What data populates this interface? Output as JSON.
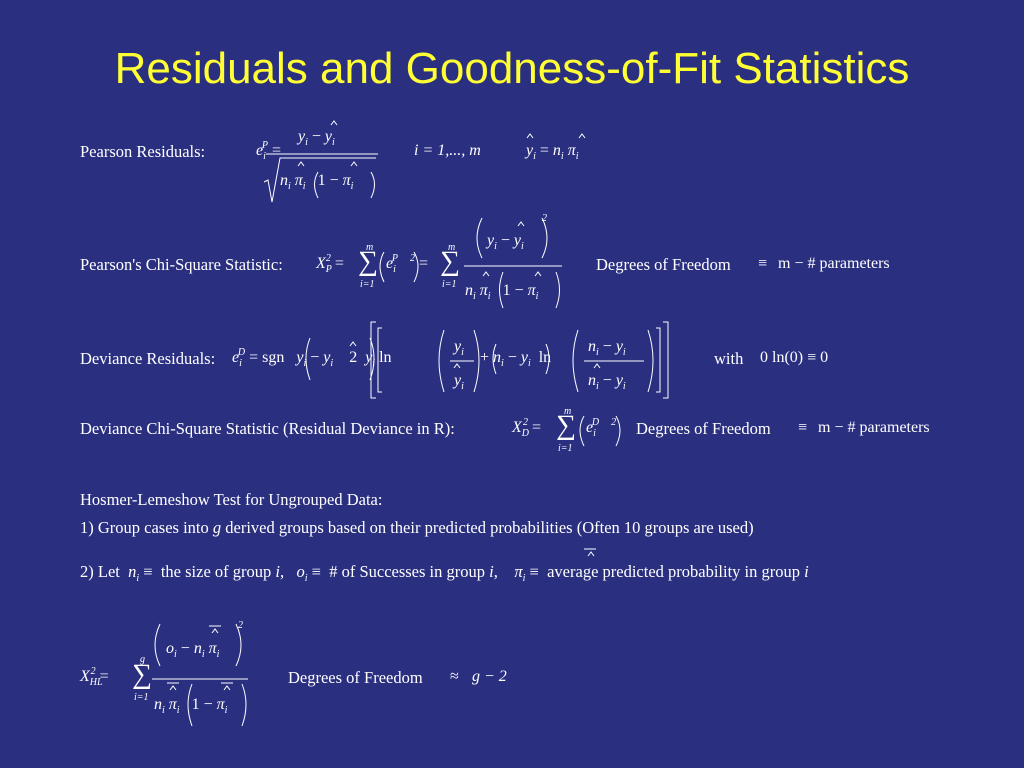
{
  "title": "Residuals and Goodness-of-Fit Statistics",
  "pearson_residuals": {
    "label": "Pearson Residuals:",
    "index_text": "i = 1,..., m"
  },
  "pearson_chi_square": {
    "label": "Pearson's Chi-Square Statistic:",
    "df_text": "Degrees of Freedom",
    "df_rhs": "m − # parameters"
  },
  "deviance_residuals": {
    "label": "Deviance Residuals:",
    "with_text": "with",
    "convention": "0 ln(0) ≡ 0"
  },
  "deviance_chi_square": {
    "label": "Deviance Chi-Square Statistic (Residual Deviance in R):",
    "df_text": "Degrees of Freedom",
    "df_rhs": "m − # parameters"
  },
  "hosmer_lemeshow": {
    "heading": "Hosmer-Lemeshow Test for Ungrouped Data:",
    "step1_prefix": "1)  Group cases into",
    "step1_var": "g",
    "step1_suffix": "derived groups based on their predicted probabilities  (Often 10 groups are used)",
    "step2_let": "2)  Let",
    "step2_size": "the size of group",
    "step2_successes": "# of Successes in group",
    "step2_avg": "average predicted probability in group",
    "df_text": "Degrees of Freedom",
    "df_rhs": "g − 2"
  }
}
